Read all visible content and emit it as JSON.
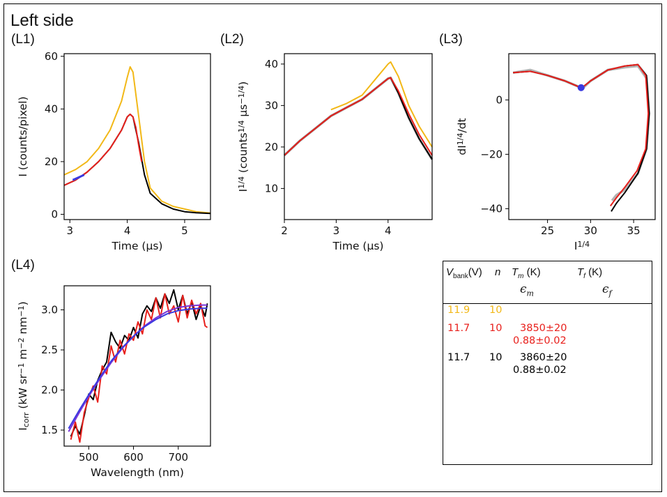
{
  "title": "Left side",
  "colors": {
    "yellow": "#f2b817",
    "red": "#e8201c",
    "black": "#000000",
    "gray": "#b3b3b3",
    "blue": "#3a3adf",
    "purple": "#7a35d8"
  },
  "chart_data": [
    {
      "id": "L1",
      "panel_label": "(L1)",
      "type": "line",
      "xlabel": "Time (μs)",
      "ylabel": "I (counts/pixel)",
      "xlim": [
        2.9,
        5.45
      ],
      "ylim": [
        -2,
        61
      ],
      "xticks": [
        "3",
        "4",
        "5"
      ],
      "yticks": [
        "0",
        "20",
        "40",
        "60"
      ],
      "series": [
        {
          "name": "11.9 V",
          "color": "yellow",
          "x": [
            2.9,
            3.1,
            3.3,
            3.5,
            3.7,
            3.9,
            4.0,
            4.05,
            4.1,
            4.2,
            4.3,
            4.4,
            4.6,
            4.8,
            5.0,
            5.2,
            5.45
          ],
          "y": [
            15,
            17,
            20,
            25,
            32,
            43,
            52,
            56,
            54,
            37,
            20,
            10,
            5,
            3,
            2,
            1,
            0.5
          ]
        },
        {
          "name": "11.7 V (black)",
          "color": "black",
          "x": [
            2.9,
            3.1,
            3.3,
            3.5,
            3.7,
            3.9,
            4.0,
            4.05,
            4.1,
            4.2,
            4.3,
            4.4,
            4.6,
            4.8,
            5.0,
            5.2,
            5.45
          ],
          "y": [
            11,
            13,
            16,
            20,
            25,
            32,
            37,
            38,
            37,
            27,
            15,
            8,
            4,
            2,
            1,
            0.6,
            0.3
          ]
        },
        {
          "name": "11.7 V fit (red)",
          "color": "red",
          "x": [
            2.9,
            3.1,
            3.3,
            3.5,
            3.7,
            3.9,
            4.0,
            4.05,
            4.1,
            4.15,
            4.2,
            4.25
          ],
          "y": [
            11,
            13,
            16,
            20,
            25,
            32,
            37,
            38,
            37,
            33,
            26,
            20
          ]
        },
        {
          "name": "window (blue)",
          "color": "blue",
          "x": [
            3.05,
            3.15,
            3.25
          ],
          "y": [
            13,
            14,
            15
          ]
        }
      ]
    },
    {
      "id": "L2",
      "panel_label": "(L2)",
      "type": "line",
      "xlabel": "Time (μs)",
      "ylabel": "I^1/4 (counts^1/4 μs^-1/4)",
      "ylabel_parts": [
        "I",
        "1/4",
        " (counts",
        "1/4",
        " μs",
        "−1/4",
        ")"
      ],
      "xlim": [
        2.0,
        4.85
      ],
      "ylim": [
        2.5,
        42.5
      ],
      "xticks": [
        "2",
        "3",
        "4"
      ],
      "yticks": [
        "10",
        "20",
        "30",
        "40"
      ],
      "series": [
        {
          "name": "yellow",
          "color": "yellow",
          "x": [
            2.9,
            3.2,
            3.5,
            3.8,
            4.0,
            4.05,
            4.2,
            4.4,
            4.6,
            4.85
          ],
          "y": [
            29,
            30.5,
            32.5,
            37,
            40,
            40.5,
            37,
            30,
            25,
            20
          ]
        },
        {
          "name": "gray",
          "color": "gray",
          "x": [
            2.0,
            2.3,
            2.6,
            2.9,
            3.2,
            3.5,
            3.8,
            4.0,
            4.05,
            4.2,
            4.4,
            4.6,
            4.85
          ],
          "y": [
            18,
            21.5,
            24.5,
            27.5,
            29.5,
            31.5,
            34.5,
            36.5,
            36.7,
            33,
            27,
            22,
            17
          ]
        },
        {
          "name": "black",
          "color": "black",
          "x": [
            2.0,
            2.3,
            2.6,
            2.9,
            3.2,
            3.5,
            3.8,
            4.0,
            4.05,
            4.2,
            4.4,
            4.6,
            4.85
          ],
          "y": [
            18,
            21.5,
            24.5,
            27.5,
            29.5,
            31.5,
            34.5,
            36.5,
            36.7,
            33,
            27,
            22,
            17
          ]
        },
        {
          "name": "red",
          "color": "red",
          "x": [
            2.0,
            2.3,
            2.6,
            2.9,
            3.2,
            3.5,
            3.8,
            4.0,
            4.05,
            4.2,
            4.4,
            4.6,
            4.85
          ],
          "y": [
            18,
            21.5,
            24.5,
            27.5,
            29.5,
            31.5,
            34.5,
            36.5,
            36.7,
            33.5,
            28,
            23,
            18
          ]
        }
      ]
    },
    {
      "id": "L3",
      "panel_label": "(L3)",
      "type": "line",
      "xlabel": "I^1/4",
      "xlabel_parts": [
        "I",
        "1/4"
      ],
      "ylabel": "dI^1/4/dt",
      "ylabel_parts": [
        "dI",
        "1/4",
        "/dt"
      ],
      "xlim": [
        20.5,
        37.5
      ],
      "ylim": [
        -44,
        17
      ],
      "xticks": [
        "25",
        "30",
        "35"
      ],
      "yticks": [
        "−40",
        "−20",
        "0"
      ],
      "xtick_values": [
        25,
        30,
        35
      ],
      "ytick_values": [
        -40,
        -20,
        0
      ],
      "series": [
        {
          "name": "gray",
          "color": "gray",
          "x": [
            21,
            23,
            25,
            27,
            28.5,
            29,
            30,
            32,
            34,
            35.5,
            36.5,
            36.8,
            36.5,
            35.5,
            34,
            33,
            32.5
          ],
          "y": [
            10,
            11,
            9,
            7,
            5,
            4,
            7,
            11,
            12,
            12.5,
            8,
            -5,
            -18,
            -27,
            -33,
            -35,
            -37
          ]
        },
        {
          "name": "black",
          "color": "black",
          "x": [
            21,
            23,
            25,
            27,
            28.5,
            29,
            30,
            32,
            34,
            35.5,
            36.5,
            36.8,
            36.5,
            35.5,
            34,
            33,
            32.4
          ],
          "y": [
            10,
            10.5,
            9,
            7,
            5,
            4.5,
            7,
            11,
            12.5,
            13,
            9,
            -5,
            -18,
            -27,
            -34,
            -38,
            -41
          ]
        },
        {
          "name": "red",
          "color": "red",
          "x": [
            21,
            23,
            25,
            27,
            28.5,
            29,
            30,
            32,
            34,
            35.5,
            36.4,
            36.7,
            36.4,
            35.4,
            34,
            33,
            32.3
          ],
          "y": [
            10,
            10.5,
            9,
            7,
            5,
            4.5,
            7,
            11,
            12.5,
            13,
            9,
            -5,
            -18,
            -26,
            -32,
            -36,
            -39
          ]
        },
        {
          "name": "marker (blue)",
          "color": "blue",
          "x": [
            28.9
          ],
          "y": [
            4.5
          ]
        }
      ]
    },
    {
      "id": "L4",
      "panel_label": "(L4)",
      "type": "line",
      "xlabel": "Wavelength (nm)",
      "ylabel": "I_corr (kW sr^-1 m^-2 nm^-1)",
      "ylabel_parts": [
        "I",
        "corr",
        " (kW sr",
        "−1",
        " m",
        "−2",
        " nm",
        "−1",
        ")"
      ],
      "xlim": [
        445,
        772
      ],
      "ylim": [
        1.3,
        3.3
      ],
      "xticks": [
        "500",
        "600",
        "700"
      ],
      "yticks": [
        "1.5",
        "2.0",
        "2.5",
        "3.0"
      ],
      "xtick_values": [
        500,
        600,
        700
      ],
      "ytick_values": [
        1.5,
        2.0,
        2.5,
        3.0
      ],
      "series": [
        {
          "name": "black",
          "color": "black",
          "x": [
            460,
            470,
            480,
            490,
            500,
            510,
            520,
            530,
            540,
            550,
            560,
            570,
            580,
            590,
            600,
            610,
            620,
            630,
            640,
            650,
            660,
            670,
            680,
            690,
            700,
            710,
            720,
            730,
            740,
            750,
            760,
            765
          ],
          "y": [
            1.42,
            1.55,
            1.45,
            1.68,
            1.95,
            1.88,
            2.12,
            2.25,
            2.35,
            2.72,
            2.6,
            2.52,
            2.68,
            2.62,
            2.78,
            2.65,
            2.95,
            3.05,
            2.98,
            3.15,
            3.02,
            3.2,
            3.08,
            3.25,
            3.0,
            3.18,
            2.95,
            3.1,
            2.88,
            3.05,
            2.92,
            3.08
          ]
        },
        {
          "name": "red",
          "color": "red",
          "x": [
            460,
            470,
            480,
            490,
            500,
            510,
            520,
            530,
            540,
            550,
            560,
            570,
            580,
            590,
            600,
            610,
            620,
            630,
            640,
            650,
            660,
            670,
            680,
            690,
            700,
            710,
            720,
            730,
            740,
            750,
            760,
            765
          ],
          "y": [
            1.38,
            1.6,
            1.35,
            1.72,
            1.9,
            2.05,
            1.85,
            2.3,
            2.2,
            2.55,
            2.35,
            2.62,
            2.45,
            2.7,
            2.62,
            2.85,
            2.7,
            3.0,
            2.88,
            3.15,
            2.9,
            3.2,
            2.95,
            3.05,
            2.85,
            3.18,
            2.9,
            3.12,
            2.95,
            3.08,
            2.8,
            2.78
          ]
        },
        {
          "name": "fit (purple)",
          "color": "purple",
          "x": [
            455,
            480,
            500,
            525,
            550,
            575,
            600,
            625,
            650,
            675,
            700,
            725,
            750,
            765
          ],
          "y": [
            1.48,
            1.73,
            1.92,
            2.14,
            2.34,
            2.52,
            2.67,
            2.8,
            2.9,
            2.98,
            3.03,
            3.05,
            3.06,
            3.06
          ]
        },
        {
          "name": "fit (blue)",
          "color": "blue",
          "x": [
            455,
            480,
            500,
            525,
            550,
            575,
            600,
            625,
            650,
            675,
            700,
            725,
            750,
            765
          ],
          "y": [
            1.52,
            1.76,
            1.94,
            2.16,
            2.36,
            2.53,
            2.67,
            2.79,
            2.88,
            2.95,
            2.99,
            3.01,
            3.02,
            3.02
          ]
        }
      ]
    }
  ],
  "table": {
    "headers": {
      "vbank": "V",
      "vbank_sub": "bank",
      "vbank_unit": "(V)",
      "n": "n",
      "tm": "T",
      "tm_sub": "m",
      "tm_unit": " (K)",
      "tf": "T",
      "tf_sub": "f",
      "tf_unit": " (K)",
      "em": "ϵ",
      "em_sub": "m",
      "ef": "ϵ",
      "ef_sub": "f"
    },
    "rows": [
      {
        "color": "yellow",
        "vbank": "11.9",
        "n": "10",
        "tm": "",
        "em": ""
      },
      {
        "color": "red",
        "vbank": "11.7",
        "n": "10",
        "tm": "3850±20",
        "em": "0.88±0.02"
      },
      {
        "color": "black",
        "vbank": "11.7",
        "n": "10",
        "tm": "3860±20",
        "em": "0.88±0.02"
      }
    ]
  }
}
